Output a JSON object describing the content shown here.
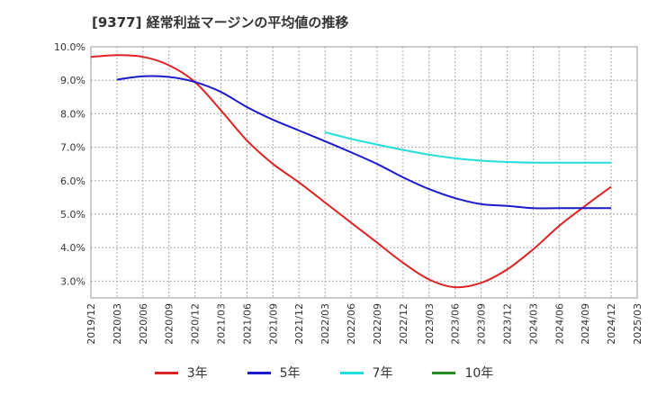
{
  "title": "[9377]  経常利益マージンの平均値の推移",
  "chart_data": {
    "type": "line",
    "title": "[9377]  経常利益マージンの平均値の推移",
    "xlabel": "",
    "ylabel": "",
    "x_ticks": [
      "2019/12",
      "2020/03",
      "2020/06",
      "2020/09",
      "2020/12",
      "2021/03",
      "2021/06",
      "2021/09",
      "2021/12",
      "2022/03",
      "2022/06",
      "2022/09",
      "2022/12",
      "2023/03",
      "2023/06",
      "2023/09",
      "2023/12",
      "2024/03",
      "2024/06",
      "2024/09",
      "2024/12",
      "2025/03"
    ],
    "y_ticks": [
      "3.0%",
      "4.0%",
      "5.0%",
      "6.0%",
      "7.0%",
      "8.0%",
      "9.0%",
      "10.0%"
    ],
    "ylim": [
      2.5,
      10.0
    ],
    "grid": true,
    "legend_position": "bottom",
    "series": [
      {
        "name": "3年",
        "color": "#dd2222",
        "x": [
          "2019/12",
          "2020/03",
          "2020/06",
          "2020/09",
          "2020/12",
          "2021/03",
          "2021/06",
          "2021/09",
          "2021/12",
          "2022/03",
          "2022/06",
          "2022/09",
          "2022/12",
          "2023/03",
          "2023/06",
          "2023/09",
          "2023/12",
          "2024/03",
          "2024/06",
          "2024/09",
          "2024/12"
        ],
        "values": [
          9.7,
          9.75,
          9.7,
          9.45,
          8.95,
          8.1,
          7.2,
          6.5,
          5.95,
          5.35,
          4.75,
          4.15,
          3.55,
          3.05,
          2.82,
          2.95,
          3.35,
          3.95,
          4.65,
          5.25,
          5.82
        ]
      },
      {
        "name": "5年",
        "color": "#1a1acc",
        "x": [
          "2020/03",
          "2020/06",
          "2020/09",
          "2020/12",
          "2021/03",
          "2021/06",
          "2021/09",
          "2021/12",
          "2022/03",
          "2022/06",
          "2022/09",
          "2022/12",
          "2023/03",
          "2023/06",
          "2023/09",
          "2023/12",
          "2024/03",
          "2024/06",
          "2024/09",
          "2024/12"
        ],
        "values": [
          9.02,
          9.12,
          9.1,
          8.95,
          8.65,
          8.2,
          7.82,
          7.5,
          7.18,
          6.85,
          6.5,
          6.1,
          5.75,
          5.48,
          5.3,
          5.25,
          5.18,
          5.18,
          5.18,
          5.18
        ]
      },
      {
        "name": "7年",
        "color": "#22dddd",
        "x": [
          "2022/03",
          "2022/06",
          "2022/09",
          "2022/12",
          "2023/03",
          "2023/06",
          "2023/09",
          "2023/12",
          "2024/03",
          "2024/06",
          "2024/09",
          "2024/12"
        ],
        "values": [
          7.45,
          7.25,
          7.08,
          6.92,
          6.78,
          6.67,
          6.6,
          6.56,
          6.54,
          6.54,
          6.54,
          6.54
        ]
      },
      {
        "name": "10年",
        "color": "#228b22",
        "x": [],
        "values": []
      }
    ]
  }
}
